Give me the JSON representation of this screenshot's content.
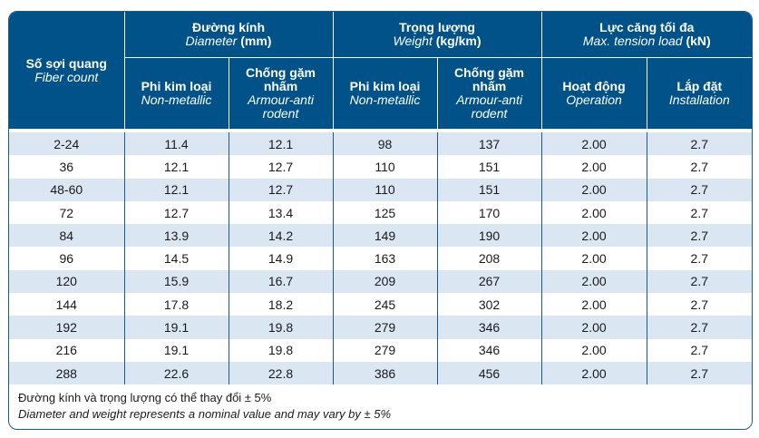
{
  "headers": {
    "fiber": {
      "vi": "Số sợi quang",
      "en": "Fiber count"
    },
    "diameter": {
      "vi": "Đường kính",
      "en": "Diameter",
      "unit": "(mm)"
    },
    "weight": {
      "vi": "Trọng lượng",
      "en": "Weight",
      "unit": "(kg/km)"
    },
    "tension": {
      "vi": "Lực căng tối đa",
      "en": "Max. tension load",
      "unit": "(kN)"
    },
    "sub": {
      "nonmetal": {
        "vi": "Phi kim loại",
        "en": "Non-metallic"
      },
      "armour": {
        "vi": "Chống gặm nhấm",
        "en": "Armour-anti rodent"
      },
      "operation": {
        "vi": "Hoạt động",
        "en": "Operation"
      },
      "installation": {
        "vi": "Lắp đặt",
        "en": "Installation"
      }
    }
  },
  "rows": [
    [
      "2-24",
      "11.4",
      "12.1",
      "98",
      "137",
      "2.00",
      "2.7"
    ],
    [
      "36",
      "12.1",
      "12.7",
      "110",
      "151",
      "2.00",
      "2.7"
    ],
    [
      "48-60",
      "12.1",
      "12.7",
      "110",
      "151",
      "2.00",
      "2.7"
    ],
    [
      "72",
      "12.7",
      "13.4",
      "125",
      "170",
      "2.00",
      "2.7"
    ],
    [
      "84",
      "13.9",
      "14.2",
      "149",
      "190",
      "2.00",
      "2.7"
    ],
    [
      "96",
      "14.5",
      "14.9",
      "163",
      "208",
      "2.00",
      "2.7"
    ],
    [
      "120",
      "15.9",
      "16.7",
      "209",
      "267",
      "2.00",
      "2.7"
    ],
    [
      "144",
      "17.8",
      "18.2",
      "245",
      "302",
      "2.00",
      "2.7"
    ],
    [
      "192",
      "19.1",
      "19.8",
      "279",
      "346",
      "2.00",
      "2.7"
    ],
    [
      "216",
      "19.1",
      "19.8",
      "279",
      "346",
      "2.00",
      "2.7"
    ],
    [
      "288",
      "22.6",
      "22.8",
      "386",
      "456",
      "2.00",
      "2.7"
    ]
  ],
  "notes": {
    "vi": "Đường kính và trọng lượng có thể thay đổi ± 5%",
    "en": "Diameter and weight represents a nominal value and may vary by ± 5%"
  }
}
